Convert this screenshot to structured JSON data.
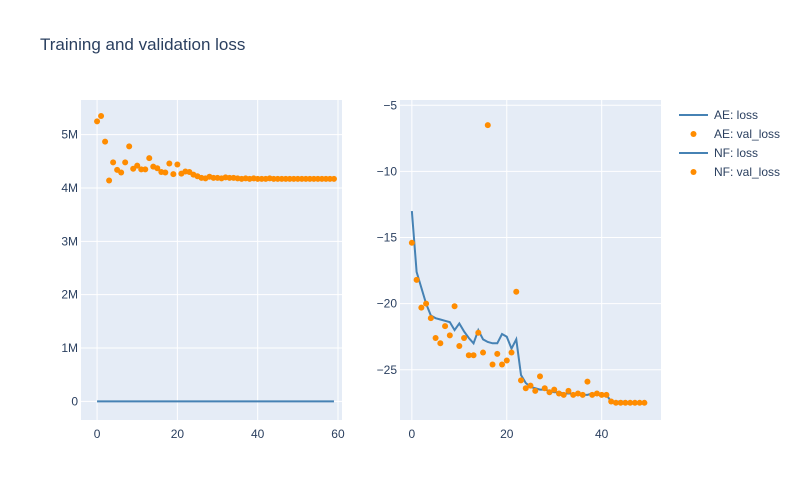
{
  "title": "Training and validation loss",
  "colors": {
    "plot_bg": "#e5ecf6",
    "line": "#4682b4",
    "marker": "#ff8c00",
    "text": "#2a3f5f"
  },
  "legend": [
    {
      "label": "AE: loss",
      "kind": "line"
    },
    {
      "label": "AE: val_loss",
      "kind": "marker"
    },
    {
      "label": "NF: loss",
      "kind": "line"
    },
    {
      "label": "NF: val_loss",
      "kind": "marker"
    }
  ],
  "chart_data": [
    {
      "type": "line+scatter",
      "panel": "left",
      "x_ticks": [
        0,
        20,
        40,
        60
      ],
      "y_ticks": [
        {
          "value": 0,
          "label": "0"
        },
        {
          "value": 1000000,
          "label": "1M"
        },
        {
          "value": 2000000,
          "label": "2M"
        },
        {
          "value": 3000000,
          "label": "3M"
        },
        {
          "value": 4000000,
          "label": "4M"
        },
        {
          "value": 5000000,
          "label": "5M"
        }
      ],
      "xlim": [
        -4,
        61
      ],
      "ylim": [
        -350000,
        5650000
      ],
      "grid": true,
      "series": [
        {
          "name": "AE: loss",
          "mode": "line",
          "x": [
            0,
            59
          ],
          "y": [
            0,
            0
          ]
        },
        {
          "name": "AE: val_loss",
          "mode": "markers",
          "x": [
            0,
            1,
            2,
            3,
            4,
            5,
            6,
            7,
            8,
            9,
            10,
            11,
            12,
            13,
            14,
            15,
            16,
            17,
            18,
            19,
            20,
            21,
            22,
            23,
            24,
            25,
            26,
            27,
            28,
            29,
            30,
            31,
            32,
            33,
            34,
            35,
            36,
            37,
            38,
            39,
            40,
            41,
            42,
            43,
            44,
            45,
            46,
            47,
            48,
            49,
            50,
            51,
            52,
            53,
            54,
            55,
            56,
            57,
            58,
            59
          ],
          "y": [
            5250000,
            5350000,
            4870000,
            4140000,
            4480000,
            4340000,
            4290000,
            4480000,
            4780000,
            4360000,
            4420000,
            4350000,
            4350000,
            4560000,
            4400000,
            4370000,
            4300000,
            4290000,
            4460000,
            4260000,
            4440000,
            4270000,
            4310000,
            4300000,
            4250000,
            4220000,
            4190000,
            4180000,
            4210000,
            4190000,
            4190000,
            4180000,
            4200000,
            4190000,
            4190000,
            4180000,
            4170000,
            4180000,
            4170000,
            4180000,
            4170000,
            4170000,
            4170000,
            4180000,
            4170000,
            4170000,
            4170000,
            4170000,
            4170000,
            4170000,
            4170000,
            4170000,
            4170000,
            4170000,
            4170000,
            4170000,
            4170000,
            4170000,
            4170000,
            4170000
          ]
        }
      ]
    },
    {
      "type": "line+scatter",
      "panel": "right",
      "x_ticks": [
        0,
        20,
        40
      ],
      "y_ticks": [
        {
          "value": -5,
          "label": "−5"
        },
        {
          "value": -10,
          "label": "−10"
        },
        {
          "value": -15,
          "label": "−15"
        },
        {
          "value": -20,
          "label": "−20"
        },
        {
          "value": -25,
          "label": "−25"
        }
      ],
      "xlim": [
        -2.5,
        52.5
      ],
      "ylim": [
        -28.8,
        -4.6
      ],
      "grid": true,
      "series": [
        {
          "name": "NF: loss",
          "mode": "line",
          "x": [
            0,
            1,
            2,
            3,
            4,
            5,
            6,
            7,
            8,
            9,
            10,
            11,
            12,
            13,
            14,
            15,
            16,
            17,
            18,
            19,
            20,
            21,
            22,
            23,
            24,
            25,
            26,
            27,
            28,
            29,
            30,
            31,
            32,
            33,
            34,
            35,
            36,
            37,
            38,
            39,
            40,
            41,
            42,
            43,
            44,
            45,
            46,
            47,
            48,
            49
          ],
          "y": [
            -13.0,
            -17.6,
            -18.8,
            -20.0,
            -20.9,
            -21.1,
            -21.2,
            -21.3,
            -21.4,
            -22.0,
            -21.5,
            -22.1,
            -22.6,
            -23.0,
            -22.0,
            -22.7,
            -22.9,
            -23.0,
            -23.0,
            -22.3,
            -22.5,
            -23.4,
            -22.7,
            -25.4,
            -26.0,
            -26.3,
            -26.4,
            -26.5,
            -26.5,
            -26.6,
            -26.7,
            -26.7,
            -26.8,
            -26.8,
            -26.8,
            -26.8,
            -26.9,
            -26.9,
            -26.8,
            -26.8,
            -26.9,
            -26.9,
            -27.4,
            -27.4,
            -27.4,
            -27.4,
            -27.5,
            -27.5,
            -27.5,
            -27.5
          ]
        },
        {
          "name": "NF: val_loss",
          "mode": "markers",
          "x": [
            0,
            1,
            2,
            3,
            4,
            5,
            6,
            7,
            8,
            9,
            10,
            11,
            12,
            13,
            14,
            15,
            16,
            17,
            18,
            19,
            20,
            21,
            22,
            23,
            24,
            25,
            26,
            27,
            28,
            29,
            30,
            31,
            32,
            33,
            34,
            35,
            36,
            37,
            38,
            39,
            40,
            41,
            42,
            43,
            44,
            45,
            46,
            47,
            48,
            49
          ],
          "y": [
            -15.4,
            -18.2,
            -20.3,
            -20.0,
            -21.1,
            -22.6,
            -23.0,
            -21.7,
            -22.4,
            -20.2,
            -23.2,
            -22.6,
            -23.9,
            -23.9,
            -22.2,
            -23.7,
            -6.5,
            -24.6,
            -23.8,
            -24.6,
            -24.3,
            -23.7,
            -19.1,
            -25.8,
            -26.4,
            -26.2,
            -26.6,
            -25.5,
            -26.4,
            -26.7,
            -26.5,
            -26.8,
            -26.9,
            -26.6,
            -26.9,
            -26.8,
            -26.9,
            -25.9,
            -26.9,
            -26.8,
            -26.9,
            -26.9,
            -27.4,
            -27.5,
            -27.5,
            -27.5,
            -27.5,
            -27.5,
            -27.5,
            -27.5
          ]
        }
      ]
    }
  ]
}
